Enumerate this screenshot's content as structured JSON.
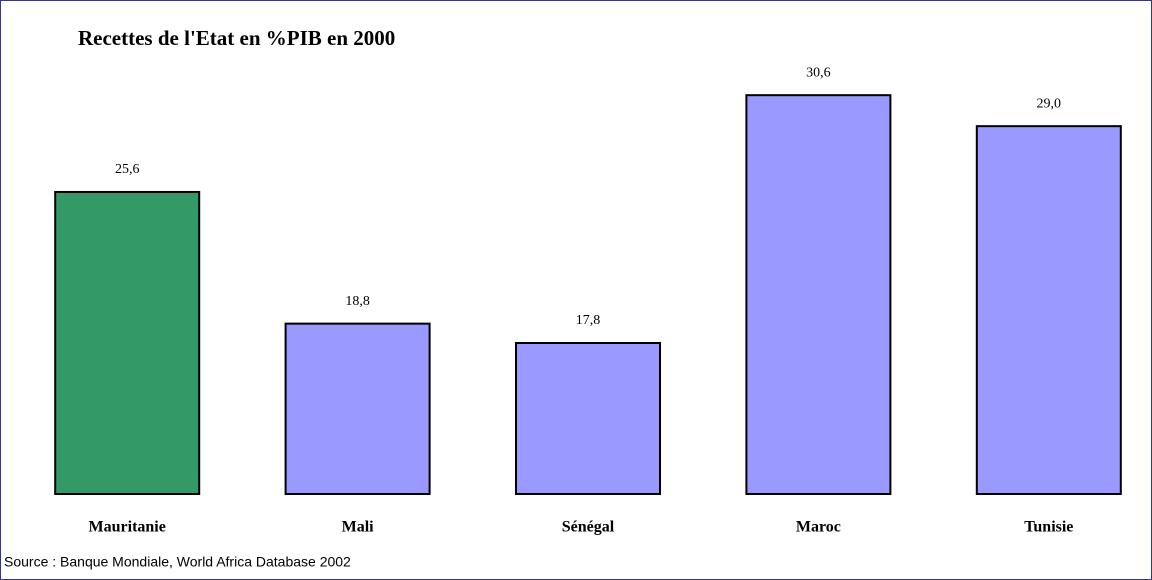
{
  "chart_data": {
    "type": "bar",
    "title": "Recettes de l'Etat en %PIB en 2000",
    "categories": [
      "Mauritanie",
      "Mali",
      "Sénégal",
      "Maroc",
      "Tunisie"
    ],
    "values": [
      25.6,
      18.8,
      17.8,
      30.6,
      29.0
    ],
    "value_labels": [
      "25,6",
      "18,8",
      "17,8",
      "30,6",
      "29,0"
    ],
    "colors": [
      "#339966",
      "#9999ff",
      "#9999ff",
      "#9999ff",
      "#9999ff"
    ],
    "ylim": [
      10,
      35
    ],
    "source": "Source : Banque Mondiale, World Africa Database 2002"
  }
}
